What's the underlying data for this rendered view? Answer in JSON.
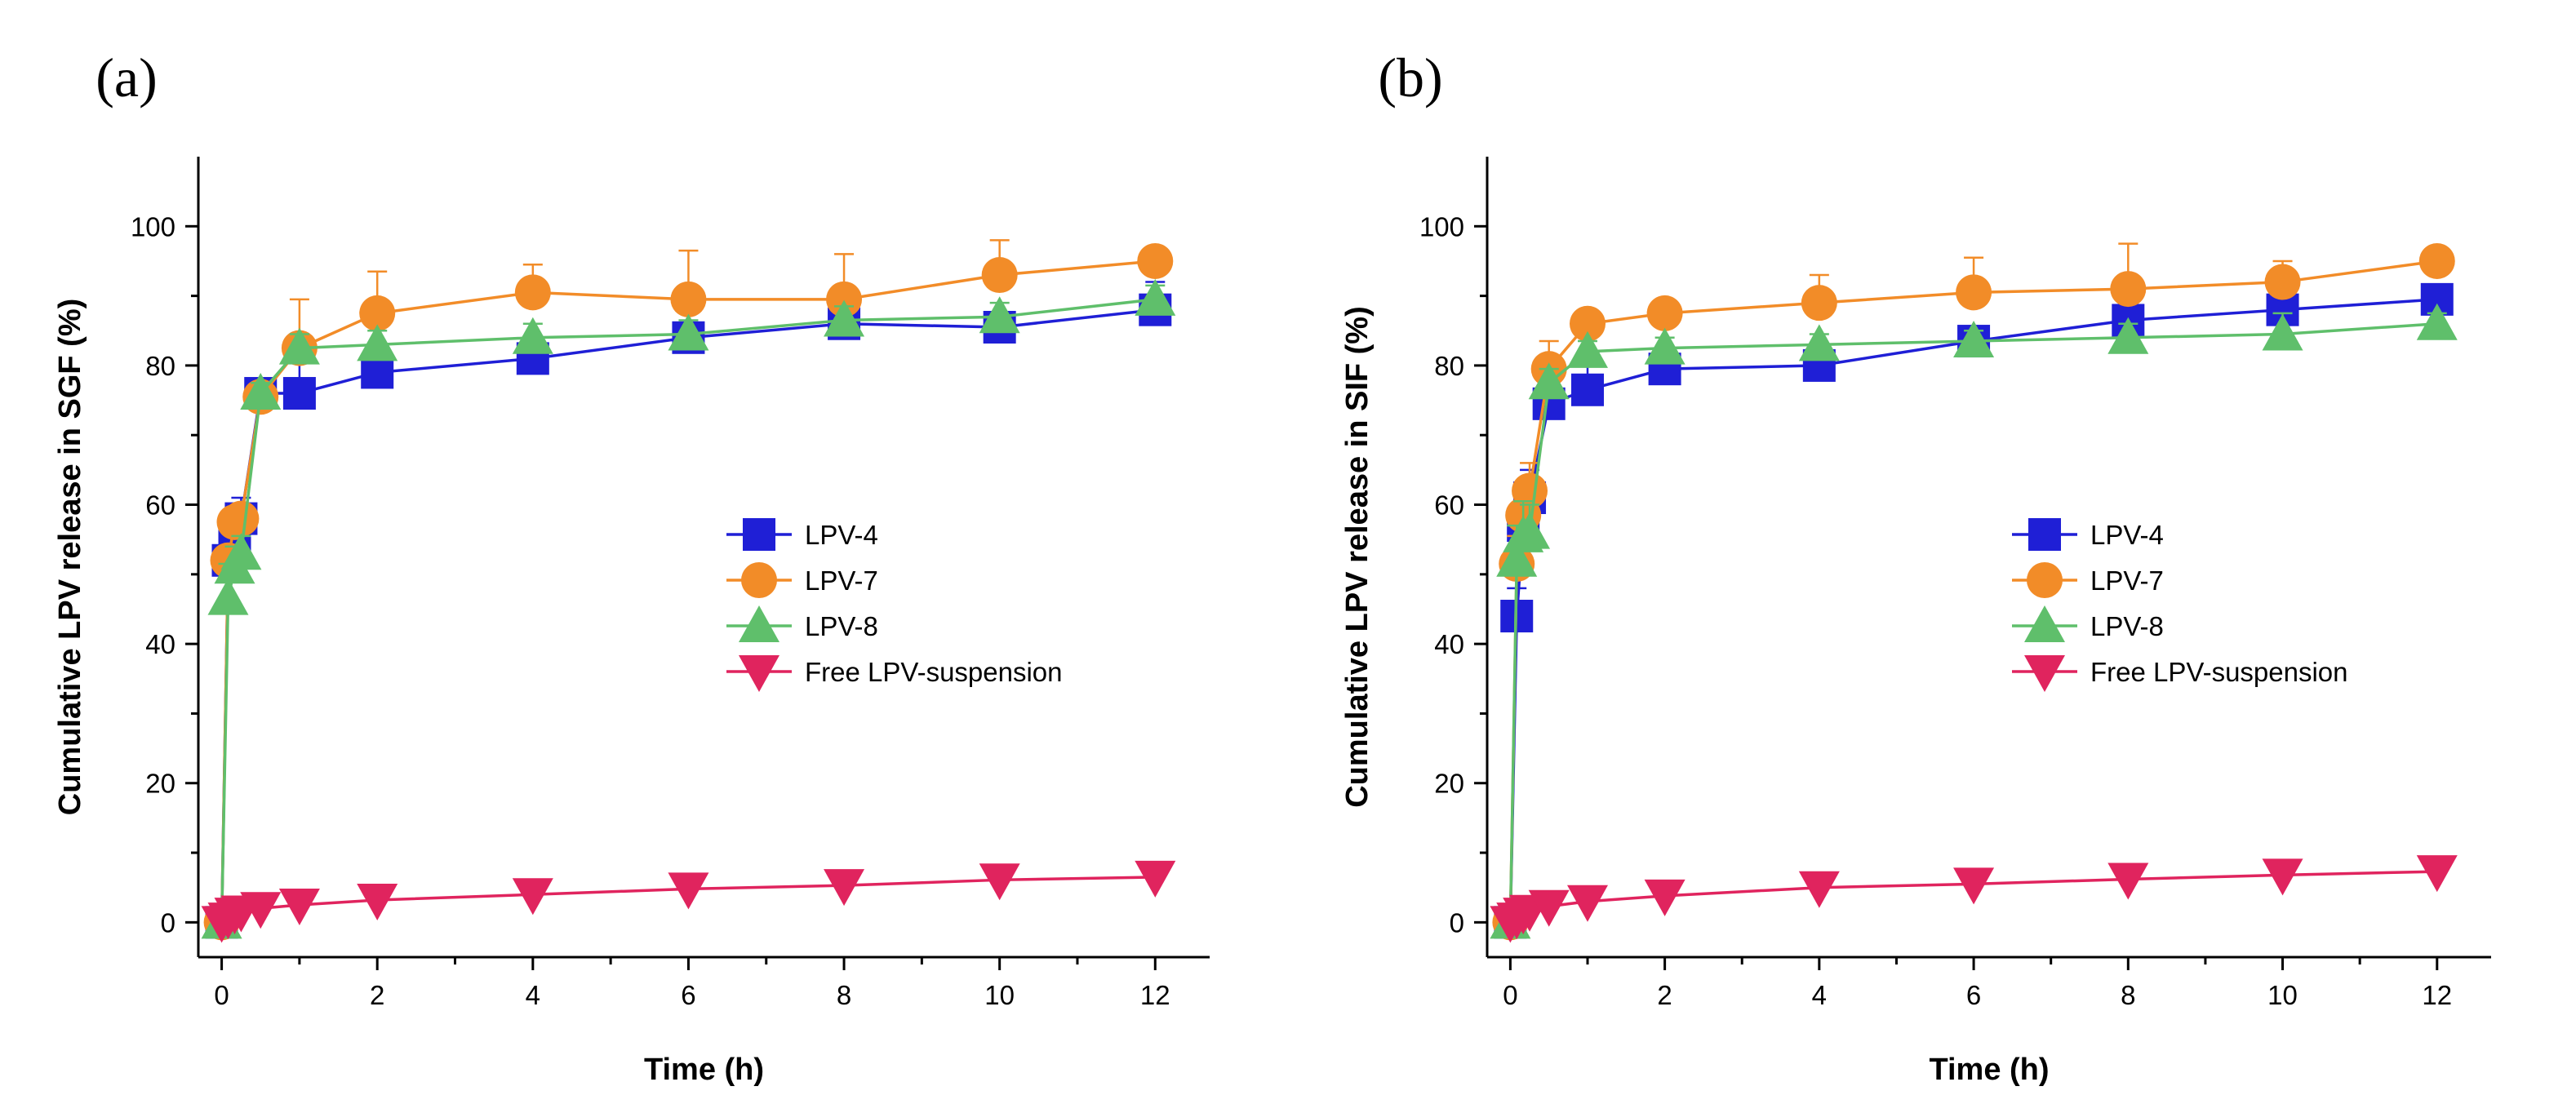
{
  "chart_data": [
    {
      "panel_label": "(a)",
      "type": "line",
      "xlabel": "Time (h)",
      "ylabel": "Cumulative LPV release in SGF (%)",
      "xlim": [
        -0.3,
        12.7
      ],
      "ylim": [
        -5,
        110
      ],
      "xticks": [
        0,
        2,
        4,
        6,
        8,
        10,
        12
      ],
      "xticks_minor": [
        1,
        3,
        5,
        7,
        9,
        11
      ],
      "yticks": [
        0,
        20,
        40,
        60,
        80,
        100
      ],
      "yticks_minor": [
        10,
        30,
        50,
        70,
        90
      ],
      "grid": false,
      "legend_position": "center-right",
      "x": [
        0,
        0.083,
        0.167,
        0.25,
        0.5,
        1,
        2,
        4,
        6,
        8,
        10,
        12
      ],
      "series": [
        {
          "name": "LPV-4",
          "color": "#1f1fd6",
          "marker": "square",
          "values": [
            0,
            52,
            55,
            58,
            76,
            76,
            79,
            81,
            84,
            86,
            85.5,
            88
          ],
          "errors": [
            0,
            3,
            3,
            3,
            1.5,
            7,
            2,
            1.5,
            2,
            2.5,
            2,
            4
          ]
        },
        {
          "name": "LPV-7",
          "color": "#f28c28",
          "marker": "circle",
          "values": [
            0,
            52,
            57.5,
            58,
            75.5,
            82.5,
            87.5,
            90.5,
            89.5,
            89.5,
            93,
            95
          ],
          "errors": [
            0,
            2,
            2,
            2,
            1.5,
            7,
            6,
            4,
            7,
            6.5,
            5,
            1.5
          ]
        },
        {
          "name": "LPV-8",
          "color": "#5fbf6b",
          "marker": "triangle-up",
          "values": [
            0,
            46.5,
            51,
            53,
            76,
            82.5,
            83,
            84,
            84.5,
            86.5,
            87,
            89.5
          ],
          "errors": [
            0,
            5,
            3,
            2.5,
            1.5,
            2,
            2,
            2,
            2,
            2,
            2,
            2
          ]
        },
        {
          "name": "Free LPV-suspension",
          "color": "#e0245e",
          "marker": "triangle-down",
          "values": [
            0,
            0.5,
            1.2,
            1.5,
            2,
            2.5,
            3.2,
            4,
            4.8,
            5.3,
            6.1,
            6.5
          ],
          "errors": [
            0,
            0.3,
            0.4,
            0.5,
            0.5,
            1,
            1,
            1,
            1.2,
            1.3,
            1.5,
            1.8
          ]
        }
      ]
    },
    {
      "panel_label": "(b)",
      "type": "line",
      "xlabel": "Time (h)",
      "ylabel": "Cumulative LPV release in SIF (%)",
      "xlim": [
        -0.3,
        12.7
      ],
      "ylim": [
        -5,
        110
      ],
      "xticks": [
        0,
        2,
        4,
        6,
        8,
        10,
        12
      ],
      "xticks_minor": [
        1,
        3,
        5,
        7,
        9,
        11
      ],
      "yticks": [
        0,
        20,
        40,
        60,
        80,
        100
      ],
      "yticks_minor": [
        10,
        30,
        50,
        70,
        90
      ],
      "grid": false,
      "legend_position": "center-right",
      "x": [
        0,
        0.083,
        0.167,
        0.25,
        0.5,
        1,
        2,
        4,
        6,
        8,
        10,
        12
      ],
      "series": [
        {
          "name": "LPV-4",
          "color": "#1f1fd6",
          "marker": "square",
          "values": [
            0,
            44,
            57,
            61,
            74.5,
            76.5,
            79.5,
            80,
            83.5,
            86.5,
            88,
            89.5
          ],
          "errors": [
            0,
            4,
            5,
            4,
            2,
            5,
            2,
            3,
            1.5,
            2,
            2,
            1.5
          ]
        },
        {
          "name": "LPV-7",
          "color": "#f28c28",
          "marker": "circle",
          "values": [
            0,
            51.5,
            58.5,
            62,
            79.5,
            86,
            87.5,
            89,
            90.5,
            91,
            92,
            95
          ],
          "errors": [
            0,
            4,
            4,
            4,
            4,
            1.5,
            1,
            4,
            5,
            6.5,
            3,
            1
          ]
        },
        {
          "name": "LPV-8",
          "color": "#5fbf6b",
          "marker": "triangle-up",
          "values": [
            0,
            52,
            55.5,
            56,
            77.5,
            82,
            82.5,
            83,
            83.5,
            84,
            84.5,
            86
          ],
          "errors": [
            0,
            5,
            5,
            4,
            2,
            1.5,
            1.5,
            1.5,
            1.5,
            2,
            3,
            1.5
          ]
        },
        {
          "name": "Free LPV-suspension",
          "color": "#e0245e",
          "marker": "triangle-down",
          "values": [
            0,
            0.5,
            1.2,
            1.6,
            2.3,
            3,
            3.8,
            5,
            5.5,
            6.2,
            6.8,
            7.3
          ],
          "errors": [
            0,
            0.3,
            0.4,
            0.5,
            0.5,
            1,
            1,
            1.5,
            1.5,
            1.5,
            2,
            2
          ]
        }
      ]
    }
  ]
}
